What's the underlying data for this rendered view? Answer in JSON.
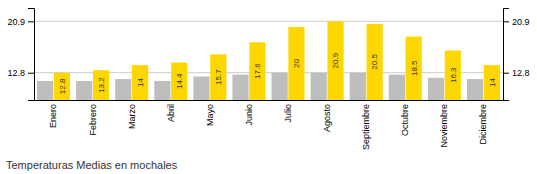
{
  "chart_data": {
    "type": "bar",
    "title": "Temperaturas Medias en mochales",
    "categories": [
      "Enero",
      "Febrero",
      "Marzo",
      "Abril",
      "Mayo",
      "Junio",
      "Julio",
      "Agosto",
      "Septiembre",
      "Octubre",
      "Noviembre",
      "Diciembre"
    ],
    "series": [
      {
        "color": "#BEBEBE",
        "values": [
          11.5,
          11.5,
          11.8,
          11.5,
          12.2,
          12.5,
          12.8,
          12.8,
          12.8,
          12.5,
          12.0,
          11.8
        ]
      },
      {
        "color": "#FFD700",
        "values": [
          12.8,
          13.2,
          14.0,
          14.4,
          15.7,
          17.6,
          20.0,
          20.9,
          20.5,
          18.5,
          16.3,
          14.0
        ],
        "data_labels": true
      }
    ],
    "ylim": [
      8.5,
      23.0
    ],
    "yticks": [
      12.8,
      20.9
    ],
    "y2lim": [
      8.5,
      23.0
    ],
    "y2ticks": [
      12.8,
      20.9
    ],
    "grid": true
  }
}
